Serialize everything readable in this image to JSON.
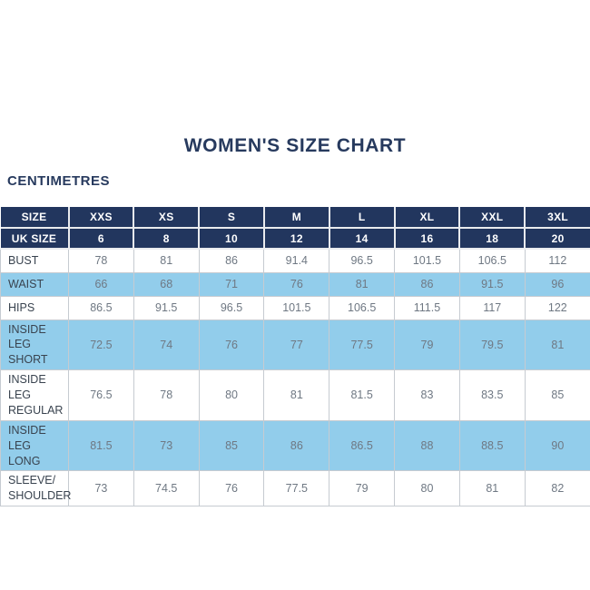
{
  "page": {
    "title": "WOMEN'S SIZE CHART",
    "unit_label": "CENTIMETRES"
  },
  "colors": {
    "navy": "#22365e",
    "light_blue": "#92cdeb",
    "border_gray": "#c6cbd1",
    "header_separator": "#e9ebee",
    "label_text": "#39434f",
    "value_text": "#6f7883",
    "title_text": "#273a5e",
    "page_bg": "#ffffff"
  },
  "table": {
    "header_rows": [
      {
        "label": "SIZE",
        "values": [
          "XXS",
          "XS",
          "S",
          "M",
          "L",
          "XL",
          "XXL",
          "3XL"
        ]
      },
      {
        "label": "UK SIZE",
        "values": [
          "6",
          "8",
          "10",
          "12",
          "14",
          "16",
          "18",
          "20"
        ]
      }
    ],
    "rows": [
      {
        "label": "BUST",
        "values": [
          "78",
          "81",
          "86",
          "91.4",
          "96.5",
          "101.5",
          "106.5",
          "112"
        ]
      },
      {
        "label": "WAIST",
        "values": [
          "66",
          "68",
          "71",
          "76",
          "81",
          "86",
          "91.5",
          "96"
        ]
      },
      {
        "label": "HIPS",
        "values": [
          "86.5",
          "91.5",
          "96.5",
          "101.5",
          "106.5",
          "111.5",
          "117",
          "122"
        ]
      },
      {
        "label": "INSIDE LEG SHORT",
        "values": [
          "72.5",
          "74",
          "76",
          "77",
          "77.5",
          "79",
          "79.5",
          "81"
        ]
      },
      {
        "label": "INSIDE LEG REGULAR",
        "values": [
          "76.5",
          "78",
          "80",
          "81",
          "81.5",
          "83",
          "83.5",
          "85"
        ]
      },
      {
        "label": "INSIDE LEG LONG",
        "values": [
          "81.5",
          "73",
          "85",
          "86",
          "86.5",
          "88",
          "88.5",
          "90"
        ]
      },
      {
        "label": "SLEEVE/ SHOULDER",
        "values": [
          "73",
          "74.5",
          "76",
          "77.5",
          "79",
          "80",
          "81",
          "82"
        ]
      }
    ]
  },
  "chart_data": {
    "type": "table",
    "title": "WOMEN'S SIZE CHART",
    "unit": "CENTIMETRES",
    "columns": [
      "SIZE",
      "XXS",
      "XS",
      "S",
      "M",
      "L",
      "XL",
      "XXL",
      "3XL"
    ],
    "uk_sizes": [
      6,
      8,
      10,
      12,
      14,
      16,
      18,
      20
    ],
    "rows": [
      {
        "measurement": "BUST",
        "values": [
          78,
          81,
          86,
          91.4,
          96.5,
          101.5,
          106.5,
          112
        ]
      },
      {
        "measurement": "WAIST",
        "values": [
          66,
          68,
          71,
          76,
          81,
          86,
          91.5,
          96
        ]
      },
      {
        "measurement": "HIPS",
        "values": [
          86.5,
          91.5,
          96.5,
          101.5,
          106.5,
          111.5,
          117,
          122
        ]
      },
      {
        "measurement": "INSIDE LEG SHORT",
        "values": [
          72.5,
          74,
          76,
          77,
          77.5,
          79,
          79.5,
          81
        ]
      },
      {
        "measurement": "INSIDE LEG REGULAR",
        "values": [
          76.5,
          78,
          80,
          81,
          81.5,
          83,
          83.5,
          85
        ]
      },
      {
        "measurement": "INSIDE LEG LONG",
        "values": [
          81.5,
          73,
          85,
          86,
          86.5,
          88,
          88.5,
          90
        ]
      },
      {
        "measurement": "SLEEVE/ SHOULDER",
        "values": [
          73,
          74.5,
          76,
          77.5,
          79,
          80,
          81,
          82
        ]
      }
    ],
    "layout": {
      "row_striping": "alternating white and light blue",
      "header_style": "navy background, white bold text"
    }
  }
}
